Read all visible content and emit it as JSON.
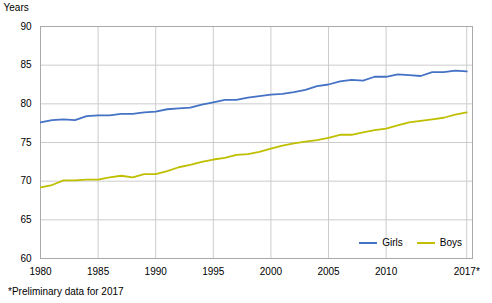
{
  "chart_data": {
    "type": "line",
    "ylabel": "Years",
    "annotations": [
      "*Preliminary data for 2017"
    ],
    "x": [
      1980,
      1981,
      1982,
      1983,
      1984,
      1985,
      1986,
      1987,
      1988,
      1989,
      1990,
      1991,
      1992,
      1993,
      1994,
      1995,
      1996,
      1997,
      1998,
      1999,
      2000,
      2001,
      2002,
      2003,
      2004,
      2005,
      2006,
      2007,
      2008,
      2009,
      2010,
      2011,
      2012,
      2013,
      2014,
      2015,
      2016,
      2017
    ],
    "series": [
      {
        "name": "Girls",
        "color": "#4472C4",
        "values": [
          77.6,
          77.9,
          78.0,
          77.9,
          78.4,
          78.5,
          78.5,
          78.7,
          78.7,
          78.9,
          79.0,
          79.3,
          79.4,
          79.5,
          79.9,
          80.2,
          80.5,
          80.5,
          80.8,
          81.0,
          81.2,
          81.3,
          81.5,
          81.8,
          82.3,
          82.5,
          82.9,
          83.1,
          83.0,
          83.5,
          83.5,
          83.8,
          83.7,
          83.6,
          84.1,
          84.1,
          84.3,
          84.2
        ]
      },
      {
        "name": "Boys",
        "color": "#BFBF00",
        "values": [
          69.2,
          69.5,
          70.1,
          70.1,
          70.2,
          70.2,
          70.5,
          70.7,
          70.5,
          70.9,
          70.9,
          71.3,
          71.8,
          72.1,
          72.5,
          72.8,
          73.0,
          73.4,
          73.5,
          73.8,
          74.2,
          74.6,
          74.9,
          75.1,
          75.3,
          75.6,
          76.0,
          76.0,
          76.3,
          76.6,
          76.8,
          77.2,
          77.6,
          77.8,
          78.0,
          78.2,
          78.6,
          78.9
        ]
      }
    ],
    "xlim": [
      1980,
      2017.5
    ],
    "xticks": [
      1980,
      1985,
      1990,
      1995,
      2000,
      2005,
      2010,
      {
        "value": 2017,
        "label": "2017*"
      }
    ],
    "ylim": [
      60,
      90
    ],
    "yticks": [
      60,
      65,
      70,
      75,
      80,
      85,
      90
    ],
    "grid": true,
    "legend": "lower right"
  }
}
